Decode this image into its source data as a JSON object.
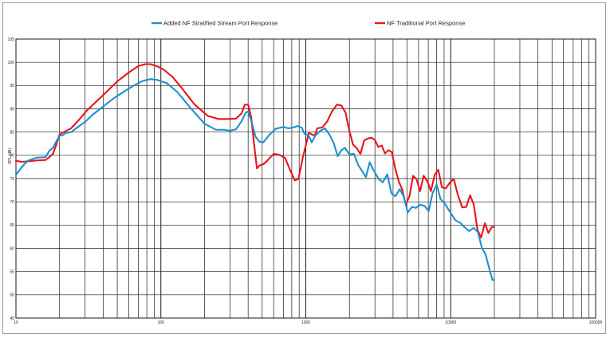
{
  "chart_data": {
    "type": "line",
    "title": "",
    "xlabel": "",
    "ylabel": "SPL (dB)",
    "x_scale": "log",
    "xlim": [
      10,
      100000
    ],
    "ylim": [
      45,
      105
    ],
    "x_ticks": [
      10,
      100,
      1000,
      10000,
      100000
    ],
    "x_tick_labels": [
      "10",
      "100",
      "1000",
      "10000",
      "100000"
    ],
    "y_ticks": [
      45,
      50,
      55,
      60,
      65,
      70,
      75,
      80,
      85,
      90,
      95,
      100,
      105
    ],
    "y_tick_labels": [
      "45",
      "50",
      "55",
      "60",
      "65",
      "70",
      "75",
      "80",
      "85",
      "90",
      "95",
      "100",
      "105"
    ],
    "grid": true,
    "legend_position": "top-center",
    "series": [
      {
        "name": "Added NF Stratified Stream Port Response",
        "color": "#1f8fd0",
        "points": [
          [
            10,
            75.8
          ],
          [
            11,
            77.5
          ],
          [
            12,
            78.8
          ],
          [
            13,
            79.2
          ],
          [
            14,
            79.5
          ],
          [
            16,
            79.6
          ],
          [
            17,
            81
          ],
          [
            18,
            81.6
          ],
          [
            19,
            83
          ],
          [
            20,
            84.2
          ],
          [
            21,
            84.3
          ],
          [
            22,
            84.8
          ],
          [
            24,
            85
          ],
          [
            26,
            85.8
          ],
          [
            30,
            87.2
          ],
          [
            34,
            88.8
          ],
          [
            40,
            90.5
          ],
          [
            47,
            92.2
          ],
          [
            55,
            93.6
          ],
          [
            65,
            95
          ],
          [
            75,
            96
          ],
          [
            85,
            96.4
          ],
          [
            95,
            96.2
          ],
          [
            110,
            95.5
          ],
          [
            130,
            93.6
          ],
          [
            160,
            90.2
          ],
          [
            200,
            86.8
          ],
          [
            240,
            85.5
          ],
          [
            270,
            85.5
          ],
          [
            300,
            85.3
          ],
          [
            330,
            85.6
          ],
          [
            360,
            87.3
          ],
          [
            385,
            89.2
          ],
          [
            400,
            89.4
          ],
          [
            420,
            87.5
          ],
          [
            450,
            84
          ],
          [
            480,
            82.9
          ],
          [
            510,
            82.8
          ],
          [
            560,
            84.4
          ],
          [
            620,
            85.7
          ],
          [
            700,
            86.1
          ],
          [
            760,
            85.8
          ],
          [
            820,
            86
          ],
          [
            880,
            86.3
          ],
          [
            940,
            85.9
          ],
          [
            980,
            84.6
          ],
          [
            1040,
            84.4
          ],
          [
            1100,
            82.8
          ],
          [
            1160,
            84.2
          ],
          [
            1260,
            85.3
          ],
          [
            1360,
            85.8
          ],
          [
            1460,
            84.4
          ],
          [
            1560,
            82.6
          ],
          [
            1660,
            79.8
          ],
          [
            1760,
            81.1
          ],
          [
            1860,
            81.6
          ],
          [
            2000,
            80.2
          ],
          [
            2150,
            80.3
          ],
          [
            2300,
            77.9
          ],
          [
            2450,
            76.6
          ],
          [
            2600,
            75.3
          ],
          [
            2760,
            78.5
          ],
          [
            2900,
            77.1
          ],
          [
            3050,
            75.9
          ],
          [
            3200,
            74.8
          ],
          [
            3400,
            74.2
          ],
          [
            3650,
            75.9
          ],
          [
            3900,
            71.8
          ],
          [
            4150,
            71.2
          ],
          [
            4450,
            72.7
          ],
          [
            4750,
            71.1
          ],
          [
            5050,
            67.7
          ],
          [
            5400,
            68.9
          ],
          [
            5750,
            68.7
          ],
          [
            6150,
            69.4
          ],
          [
            6600,
            69.1
          ],
          [
            7050,
            68
          ],
          [
            7500,
            71.9
          ],
          [
            8000,
            73.7
          ],
          [
            8500,
            70.6
          ],
          [
            9200,
            69.4
          ],
          [
            10000,
            67.6
          ],
          [
            10800,
            66
          ],
          [
            11600,
            65.5
          ],
          [
            12500,
            64.5
          ],
          [
            13400,
            63.7
          ],
          [
            14400,
            64.4
          ],
          [
            15400,
            63.5
          ],
          [
            16400,
            60.1
          ],
          [
            17400,
            58.7
          ],
          [
            18400,
            55.8
          ],
          [
            19400,
            53.2
          ],
          [
            20000,
            53.2
          ]
        ]
      },
      {
        "name": "NF Traditional Port Response",
        "color": "#e8141c",
        "points": [
          [
            10,
            78.8
          ],
          [
            11,
            78.6
          ],
          [
            12,
            78.7
          ],
          [
            13,
            78.8
          ],
          [
            14,
            78.9
          ],
          [
            16,
            79
          ],
          [
            17,
            79.6
          ],
          [
            18,
            80.3
          ],
          [
            19,
            82.3
          ],
          [
            20,
            84.5
          ],
          [
            22,
            85.2
          ],
          [
            24,
            85.8
          ],
          [
            27,
            87.5
          ],
          [
            31,
            89.7
          ],
          [
            36,
            91.6
          ],
          [
            42,
            93.6
          ],
          [
            50,
            95.9
          ],
          [
            60,
            97.8
          ],
          [
            70,
            99.2
          ],
          [
            78,
            99.6
          ],
          [
            85,
            99.6
          ],
          [
            95,
            99.1
          ],
          [
            105,
            98.4
          ],
          [
            120,
            96.9
          ],
          [
            140,
            94.4
          ],
          [
            170,
            91
          ],
          [
            210,
            88.5
          ],
          [
            250,
            87.8
          ],
          [
            290,
            87.8
          ],
          [
            330,
            87.9
          ],
          [
            360,
            89
          ],
          [
            380,
            90.9
          ],
          [
            400,
            90.9
          ],
          [
            420,
            88.2
          ],
          [
            440,
            82.3
          ],
          [
            460,
            77.2
          ],
          [
            480,
            77.8
          ],
          [
            510,
            78.1
          ],
          [
            540,
            78.8
          ],
          [
            600,
            80.3
          ],
          [
            660,
            80.1
          ],
          [
            720,
            79.4
          ],
          [
            780,
            76.8
          ],
          [
            840,
            74.6
          ],
          [
            890,
            74.9
          ],
          [
            950,
            79.3
          ],
          [
            1000,
            82.1
          ],
          [
            1050,
            84.9
          ],
          [
            1100,
            84.5
          ],
          [
            1150,
            84.2
          ],
          [
            1200,
            85.8
          ],
          [
            1300,
            86
          ],
          [
            1400,
            87.2
          ],
          [
            1520,
            89.5
          ],
          [
            1640,
            90.9
          ],
          [
            1760,
            90.7
          ],
          [
            1880,
            89.2
          ],
          [
            2000,
            85.2
          ],
          [
            2120,
            82.3
          ],
          [
            2240,
            81.6
          ],
          [
            2380,
            80.3
          ],
          [
            2530,
            83.2
          ],
          [
            2680,
            83.6
          ],
          [
            2840,
            83.8
          ],
          [
            3000,
            83.3
          ],
          [
            3160,
            81.8
          ],
          [
            3340,
            82.1
          ],
          [
            3520,
            80.4
          ],
          [
            3720,
            81.1
          ],
          [
            3920,
            80.7
          ],
          [
            4140,
            77.2
          ],
          [
            4380,
            74.4
          ],
          [
            4620,
            72.7
          ],
          [
            4900,
            69.4
          ],
          [
            5200,
            71.3
          ],
          [
            5500,
            75.6
          ],
          [
            5800,
            74.9
          ],
          [
            6150,
            72.3
          ],
          [
            6500,
            75.6
          ],
          [
            6900,
            74.4
          ],
          [
            7300,
            72.3
          ],
          [
            7750,
            75.8
          ],
          [
            8200,
            76.9
          ],
          [
            8700,
            73.1
          ],
          [
            9250,
            72.9
          ],
          [
            9850,
            74.1
          ],
          [
            10500,
            74.9
          ],
          [
            11200,
            71.5
          ],
          [
            12000,
            68.8
          ],
          [
            12800,
            68.9
          ],
          [
            13600,
            71.4
          ],
          [
            14400,
            69.5
          ],
          [
            15300,
            64
          ],
          [
            16200,
            62.3
          ],
          [
            17200,
            65.4
          ],
          [
            18200,
            63.3
          ],
          [
            19200,
            64.6
          ],
          [
            20000,
            64.6
          ]
        ]
      }
    ]
  }
}
